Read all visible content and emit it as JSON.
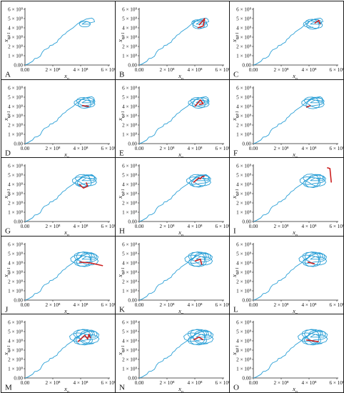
{
  "colors": {
    "trajectory": "#2a9fd6",
    "highlight": "#cc1f1f",
    "axis": "#222222",
    "border": "#1a1a1a"
  },
  "axis_labels": {
    "x_main": "x",
    "x_sub": "n",
    "y_main": "x",
    "y_sub": "n+1"
  },
  "x_ticks": [
    "0.00",
    "2 × 10⁸",
    "4 × 10⁸",
    "6 × 10⁸"
  ],
  "y_ticks": [
    "0.00",
    "1 × 10⁸",
    "2 × 10⁸",
    "3 × 10⁸",
    "4 × 10⁸",
    "5 × 10⁸",
    "6 × 10⁸"
  ],
  "panel_labels": [
    "A",
    "B",
    "C",
    "D",
    "E",
    "F",
    "G",
    "H",
    "I",
    "J",
    "K",
    "L",
    "M",
    "N",
    "O"
  ],
  "chart_data": {
    "type": "line",
    "layout": "5 rows × 3 columns of return-map panels",
    "xlim": [
      0,
      600000000
    ],
    "ylim": [
      0,
      600000000
    ],
    "grid": false,
    "xlabel": "x_n",
    "ylabel": "x_{n+1}",
    "base_trajectory": [
      [
        0,
        0
      ],
      [
        20000000,
        10000000
      ],
      [
        55000000,
        40000000
      ],
      [
        70000000,
        70000000
      ],
      [
        90000000,
        75000000
      ],
      [
        110000000,
        95000000
      ],
      [
        125000000,
        140000000
      ],
      [
        140000000,
        165000000
      ],
      [
        150000000,
        170000000
      ],
      [
        170000000,
        185000000
      ],
      [
        180000000,
        210000000
      ],
      [
        200000000,
        215000000
      ],
      [
        210000000,
        230000000
      ],
      [
        230000000,
        245000000
      ],
      [
        240000000,
        275000000
      ],
      [
        255000000,
        290000000
      ],
      [
        270000000,
        320000000
      ],
      [
        290000000,
        335000000
      ],
      [
        300000000,
        355000000
      ],
      [
        315000000,
        370000000
      ],
      [
        330000000,
        385000000
      ],
      [
        345000000,
        400000000
      ],
      [
        360000000,
        420000000
      ],
      [
        375000000,
        440000000
      ],
      [
        390000000,
        455000000
      ],
      [
        400000000,
        470000000
      ],
      [
        420000000,
        480000000
      ],
      [
        440000000,
        495000000
      ],
      [
        460000000,
        500000000
      ],
      [
        480000000,
        505000000
      ],
      [
        495000000,
        490000000
      ],
      [
        500000000,
        465000000
      ],
      [
        470000000,
        455000000
      ],
      [
        445000000,
        470000000
      ],
      [
        420000000,
        450000000
      ],
      [
        410000000,
        440000000
      ]
    ],
    "panels": [
      {
        "label": "A",
        "extent": 0,
        "highlight": []
      },
      {
        "label": "B",
        "extent": 4,
        "highlight": [
          [
            430000000,
            430000000
          ],
          [
            470000000,
            500000000
          ],
          [
            460000000,
            420000000
          ],
          [
            420000000,
            400000000
          ]
        ]
      },
      {
        "label": "C",
        "extent": 5,
        "highlight": [
          [
            440000000,
            450000000
          ],
          [
            470000000,
            480000000
          ],
          [
            480000000,
            440000000
          ]
        ]
      },
      {
        "label": "D",
        "extent": 6,
        "highlight": [
          [
            410000000,
            410000000
          ],
          [
            460000000,
            400000000
          ]
        ]
      },
      {
        "label": "E",
        "extent": 6,
        "highlight": [
          [
            400000000,
            400000000
          ],
          [
            440000000,
            470000000
          ],
          [
            460000000,
            430000000
          ],
          [
            430000000,
            420000000
          ]
        ]
      },
      {
        "label": "F",
        "extent": 7,
        "highlight": [
          [
            380000000,
            390000000
          ],
          [
            410000000,
            410000000
          ]
        ]
      },
      {
        "label": "G",
        "extent": 8,
        "highlight": [
          [
            390000000,
            400000000
          ],
          [
            420000000,
            360000000
          ],
          [
            450000000,
            380000000
          ],
          [
            440000000,
            420000000
          ]
        ]
      },
      {
        "label": "H",
        "extent": 8,
        "highlight": [
          [
            390000000,
            420000000
          ],
          [
            430000000,
            470000000
          ],
          [
            440000000,
            460000000
          ],
          [
            450000000,
            480000000
          ],
          [
            470000000,
            490000000
          ]
        ]
      },
      {
        "label": "I",
        "extent": 9,
        "highlight": [
          [
            530000000,
            580000000
          ],
          [
            550000000,
            570000000
          ],
          [
            560000000,
            420000000
          ]
        ]
      },
      {
        "label": "J",
        "extent": 10,
        "highlight": [
          [
            390000000,
            410000000
          ],
          [
            470000000,
            400000000
          ],
          [
            560000000,
            370000000
          ]
        ]
      },
      {
        "label": "K",
        "extent": 10,
        "highlight": [
          [
            400000000,
            420000000
          ],
          [
            440000000,
            440000000
          ],
          [
            450000000,
            380000000
          ]
        ]
      },
      {
        "label": "L",
        "extent": 10,
        "highlight": [
          [
            390000000,
            410000000
          ],
          [
            440000000,
            390000000
          ]
        ]
      },
      {
        "label": "M",
        "extent": 11,
        "highlight": [
          [
            380000000,
            390000000
          ],
          [
            430000000,
            460000000
          ],
          [
            450000000,
            420000000
          ],
          [
            460000000,
            470000000
          ],
          [
            470000000,
            430000000
          ]
        ]
      },
      {
        "label": "N",
        "extent": 11,
        "highlight": [
          [
            390000000,
            410000000
          ],
          [
            430000000,
            440000000
          ],
          [
            460000000,
            410000000
          ]
        ]
      },
      {
        "label": "O",
        "extent": 11,
        "highlight": [
          [
            380000000,
            410000000
          ],
          [
            470000000,
            390000000
          ]
        ]
      }
    ]
  }
}
